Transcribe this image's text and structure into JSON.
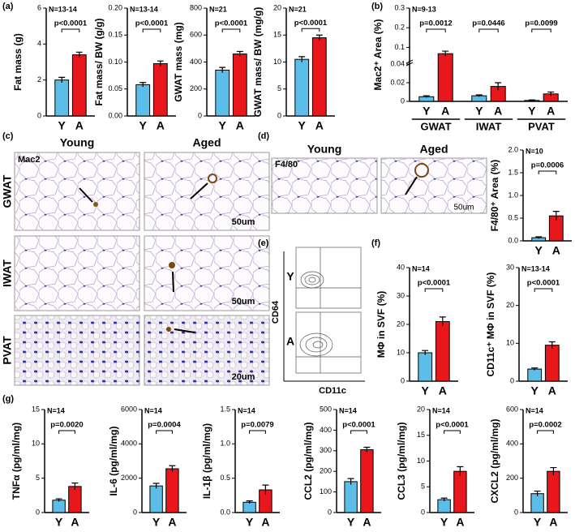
{
  "figure": {
    "panel_labels": [
      "(a)",
      "(b)",
      "(c)",
      "(d)",
      "(e)",
      "(f)",
      "(g)"
    ],
    "c": {
      "columns": [
        "Young",
        "Aged"
      ],
      "stain": "Mac2",
      "rows": [
        "GWAT",
        "IWAT",
        "PVAT"
      ],
      "scale_bars": [
        "50um",
        "50um",
        "20um"
      ]
    },
    "d": {
      "columns": [
        "Young",
        "Aged"
      ],
      "stain": "F4/80",
      "scale_bar": "50um"
    },
    "e": {
      "y_axis": "CD64",
      "x_axis": "CD11c",
      "rows": [
        "Y",
        "A"
      ]
    }
  },
  "chart_data": [
    {
      "type": "bar",
      "ylabel": "Fat mass (g)",
      "n_label": "N=13-14",
      "p_labels": [
        "p<0.0001"
      ],
      "categories": [
        "Y",
        "A"
      ],
      "values": [
        2.0,
        3.4
      ],
      "errors": [
        0.15,
        0.15
      ],
      "colors": [
        "#5bbde8",
        "#e8171b"
      ],
      "ylim": [
        0,
        6
      ],
      "yticks": [
        0,
        2,
        4,
        6
      ]
    },
    {
      "type": "bar",
      "ylabel": "Fat mass/ BW (g/g)",
      "n_label": "N=13-14",
      "p_labels": [
        "p<0.0001"
      ],
      "categories": [
        "Y",
        "A"
      ],
      "values": [
        0.058,
        0.097
      ],
      "errors": [
        0.004,
        0.005
      ],
      "colors": [
        "#5bbde8",
        "#e8171b"
      ],
      "ylim": [
        0,
        0.2
      ],
      "yticks": [
        {
          "value": 0,
          "label": "0.00"
        },
        {
          "value": 0.05,
          "label": "0.05"
        },
        {
          "value": 0.1,
          "label": "0.10"
        },
        {
          "value": 0.15,
          "label": "0.15"
        },
        {
          "value": 0.2,
          "label": "0.20"
        }
      ]
    },
    {
      "type": "bar",
      "ylabel": "GWAT mass (mg)",
      "n_label": "N=21",
      "p_labels": [
        "p<0.0001"
      ],
      "categories": [
        "Y",
        "A"
      ],
      "values": [
        340,
        460
      ],
      "errors": [
        20,
        18
      ],
      "colors": [
        "#5bbde8",
        "#e8171b"
      ],
      "ylim": [
        0,
        800
      ],
      "yticks": [
        0,
        200,
        400,
        600,
        800
      ]
    },
    {
      "type": "bar",
      "ylabel": "GWAT mass/ BW (mg/g)",
      "n_label": "N=21",
      "p_labels": [
        "p<0.0001"
      ],
      "categories": [
        "Y",
        "A"
      ],
      "values": [
        10.5,
        14.5
      ],
      "errors": [
        0.5,
        0.5
      ],
      "colors": [
        "#5bbde8",
        "#e8171b"
      ],
      "ylim": [
        0,
        20
      ],
      "yticks": [
        0,
        5,
        10,
        15,
        20
      ]
    },
    {
      "type": "bar",
      "ylabel": "Mac2⁺ Area (%)",
      "n_label": "N=9-13",
      "groups": [
        "GWAT",
        "IWAT",
        "PVAT"
      ],
      "p_labels": [
        "p=0.0012",
        "p=0.0446",
        "p=0.0099"
      ],
      "categories": [
        "Y",
        "A",
        "Y",
        "A",
        "Y",
        "A"
      ],
      "values": [
        0.005,
        0.068,
        0.006,
        0.016,
        0.001,
        0.008
      ],
      "errors": [
        0.001,
        0.013,
        0.001,
        0.004,
        0.0005,
        0.002
      ],
      "colors": [
        "#5bbde8",
        "#e8171b",
        "#5bbde8",
        "#e8171b",
        "#5bbde8",
        "#e8171b"
      ],
      "ylim": [
        0,
        0.3
      ],
      "axis_break": 0.04,
      "yticks": [
        0,
        0.02,
        0.04,
        0.1,
        0.2,
        0.3
      ]
    },
    {
      "type": "bar",
      "ylabel": "F4/80⁺ Area (%)",
      "n_label": "N=10",
      "p_labels": [
        "p=0.0006"
      ],
      "categories": [
        "Y",
        "A"
      ],
      "values": [
        0.07,
        0.55
      ],
      "errors": [
        0.02,
        0.1
      ],
      "colors": [
        "#5bbde8",
        "#e8171b"
      ],
      "ylim": [
        0,
        2
      ],
      "yticks": [
        {
          "value": 0,
          "label": "0.0"
        },
        {
          "value": 0.5,
          "label": "0.5"
        },
        {
          "value": 1,
          "label": "1.0"
        },
        {
          "value": 1.5,
          "label": "1.5"
        },
        {
          "value": 2,
          "label": "2.0"
        }
      ]
    },
    {
      "type": "bar",
      "ylabel": "MΦ in SVF (%)",
      "n_label": "N=14",
      "p_labels": [
        "p<0.0001"
      ],
      "categories": [
        "Y",
        "A"
      ],
      "values": [
        10,
        21
      ],
      "errors": [
        0.8,
        1.6
      ],
      "colors": [
        "#5bbde8",
        "#e8171b"
      ],
      "ylim": [
        0,
        40
      ],
      "yticks": [
        0,
        10,
        20,
        30,
        40
      ]
    },
    {
      "type": "bar",
      "ylabel": "CD11c⁺ MΦ in SVF (%)",
      "n_label": "N=13-14",
      "p_labels": [
        "p<0.0001"
      ],
      "categories": [
        "Y",
        "A"
      ],
      "values": [
        3.2,
        9.5
      ],
      "errors": [
        0.3,
        0.9
      ],
      "colors": [
        "#5bbde8",
        "#e8171b"
      ],
      "ylim": [
        0,
        30
      ],
      "yticks": [
        0,
        10,
        20,
        30
      ]
    },
    {
      "type": "bar",
      "ylabel": "TNFα (pg/ml/mg)",
      "n_label": "N=14",
      "p_labels": [
        "p=0.0020"
      ],
      "categories": [
        "Y",
        "A"
      ],
      "values": [
        1.8,
        3.8
      ],
      "errors": [
        0.2,
        0.5
      ],
      "colors": [
        "#5bbde8",
        "#e8171b"
      ],
      "ylim": [
        0,
        15
      ],
      "yticks": [
        0,
        5,
        10,
        15
      ]
    },
    {
      "type": "bar",
      "ylabel": "IL-6 (pg/ml/mg)",
      "n_label": "N=14",
      "p_labels": [
        "p=0.0004"
      ],
      "categories": [
        "Y",
        "A"
      ],
      "values": [
        1550,
        2550
      ],
      "errors": [
        150,
        180
      ],
      "colors": [
        "#5bbde8",
        "#e8171b"
      ],
      "ylim": [
        0,
        6000
      ],
      "yticks": [
        0,
        2000,
        4000,
        6000
      ]
    },
    {
      "type": "bar",
      "ylabel": "IL-1β (pg/ml/mg)",
      "n_label": "N=14",
      "p_labels": [
        "p=0.0079"
      ],
      "categories": [
        "Y",
        "A"
      ],
      "values": [
        0.15,
        0.33
      ],
      "errors": [
        0.02,
        0.07
      ],
      "colors": [
        "#5bbde8",
        "#e8171b"
      ],
      "ylim": [
        0,
        1.5
      ],
      "yticks": [
        {
          "value": 0,
          "label": "0.0"
        },
        {
          "value": 0.5,
          "label": "0.5"
        },
        {
          "value": 1,
          "label": "1.0"
        },
        {
          "value": 1.5,
          "label": "1.5"
        }
      ]
    },
    {
      "type": "bar",
      "ylabel": "CCL2 (pg/ml/mg)",
      "n_label": "N=14",
      "p_labels": [
        "p<0.0001"
      ],
      "categories": [
        "Y",
        "A"
      ],
      "values": [
        150,
        305
      ],
      "errors": [
        15,
        12
      ],
      "colors": [
        "#5bbde8",
        "#e8171b"
      ],
      "ylim": [
        0,
        500
      ],
      "yticks": [
        0,
        100,
        200,
        300,
        400,
        500
      ]
    },
    {
      "type": "bar",
      "ylabel": "CCL3 (pg/ml/mg)",
      "n_label": "N=14",
      "p_labels": [
        "p<0.0001"
      ],
      "categories": [
        "Y",
        "A"
      ],
      "values": [
        2.5,
        8.0
      ],
      "errors": [
        0.3,
        0.9
      ],
      "colors": [
        "#5bbde8",
        "#e8171b"
      ],
      "ylim": [
        0,
        20
      ],
      "yticks": [
        0,
        5,
        10,
        15,
        20
      ]
    },
    {
      "type": "bar",
      "ylabel": "CXCL2 (pg/ml/mg)",
      "n_label": "N=14",
      "p_labels": [
        "p=0.0002"
      ],
      "categories": [
        "Y",
        "A"
      ],
      "values": [
        110,
        240
      ],
      "errors": [
        15,
        22
      ],
      "colors": [
        "#5bbde8",
        "#e8171b"
      ],
      "ylim": [
        0,
        600
      ],
      "yticks": [
        0,
        200,
        400,
        600
      ]
    }
  ]
}
